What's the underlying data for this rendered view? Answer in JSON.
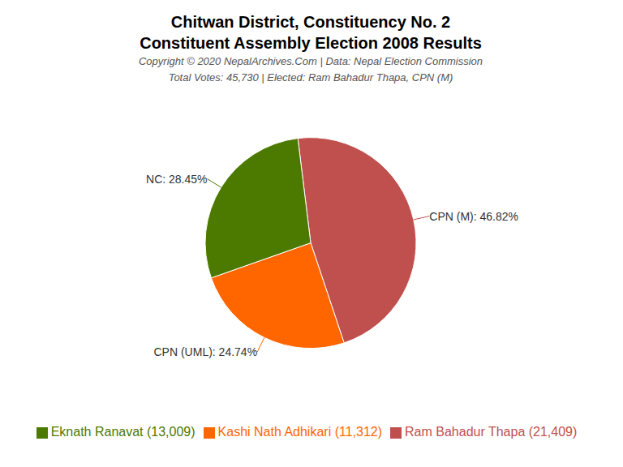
{
  "chart_data": {
    "type": "pie",
    "title": "Chitwan District, Constituency No. 2",
    "subtitle": "Constituent Assembly Election 2008 Results",
    "annotations": [
      "Copyright © 2020 NepalArchives.Com | Data: Nepal Election Commission",
      "Total Votes: 45,730 | Elected: Ram Bahadur Thapa, CPN (M)"
    ],
    "categories": [
      "Ram Bahadur Thapa (21,409)",
      "Kashi Nath Adhikari (11,312)",
      "Eknath Ranavat (13,009)"
    ],
    "values": [
      46.82,
      24.74,
      28.45
    ],
    "value_labels": [
      "CPN (M): 46.82%",
      "CPN (UML): 24.74%",
      "NC: 28.45%"
    ],
    "colors": [
      "#C0504D",
      "#FF6600",
      "#4C7A00"
    ],
    "data_labels": true
  }
}
